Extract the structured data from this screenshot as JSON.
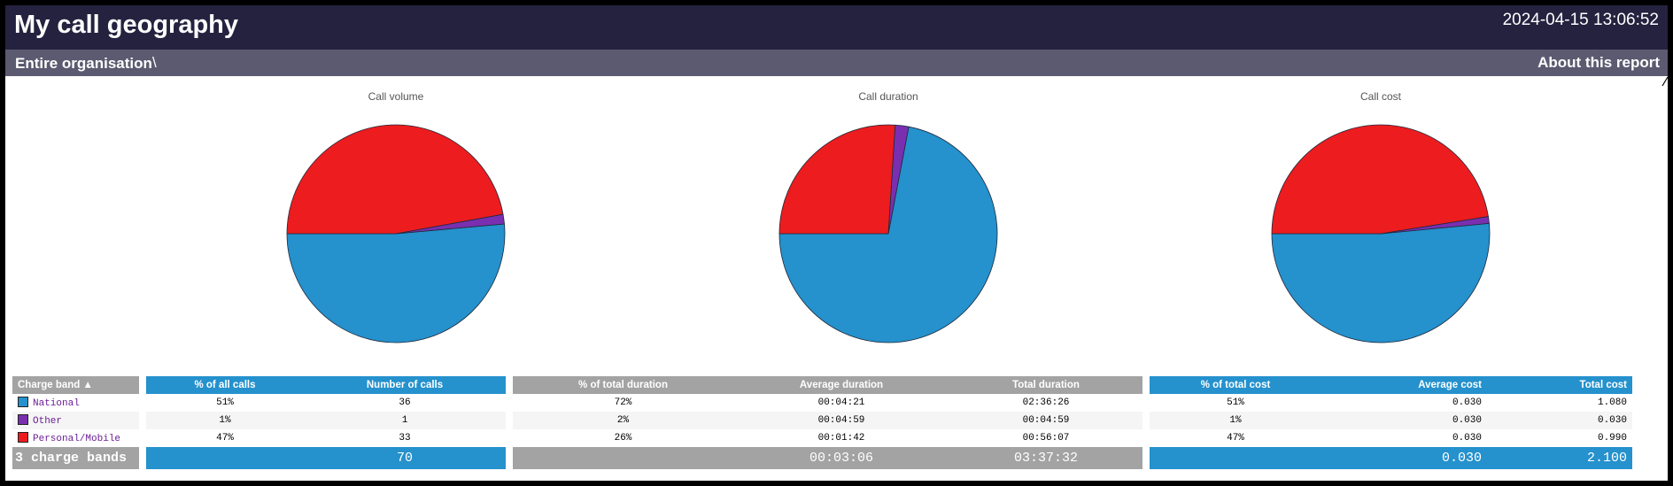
{
  "header": {
    "title": "My call geography",
    "timestamp": "2024-04-15 13:06:52"
  },
  "nav": {
    "breadcrumb": "Entire organisation",
    "separator": "\\",
    "about": "About this report"
  },
  "colors": {
    "header_bg": "#24223f",
    "nav_bg": "#5b5a70",
    "accent_blue": "#2591cd",
    "header_gray": "#a3a3a3",
    "national": "#2591cd",
    "other": "#7a2fb0",
    "personal_mobile": "#ed1c1f"
  },
  "chart_data": [
    {
      "type": "pie",
      "title": "Call volume",
      "categories": [
        "National",
        "Other",
        "Personal/Mobile"
      ],
      "values": [
        36,
        1,
        33
      ]
    },
    {
      "type": "pie",
      "title": "Call duration",
      "categories": [
        "National",
        "Other",
        "Personal/Mobile"
      ],
      "values": [
        72,
        2,
        26
      ]
    },
    {
      "type": "pie",
      "title": "Call cost",
      "categories": [
        "National",
        "Other",
        "Personal/Mobile"
      ],
      "values": [
        51,
        1,
        47
      ]
    }
  ],
  "table": {
    "headers": {
      "band": "Charge band ▲",
      "pct_calls": "% of all calls",
      "num_calls": "Number of calls",
      "pct_duration": "% of total duration",
      "avg_duration": "Average duration",
      "total_duration": "Total duration",
      "pct_cost": "% of total cost",
      "avg_cost": "Average cost",
      "total_cost": "Total cost"
    },
    "rows": [
      {
        "band": "National",
        "color": "#2591cd",
        "pct_calls": "51%",
        "num_calls": "36",
        "pct_duration": "72%",
        "avg_duration": "00:04:21",
        "total_duration": "02:36:26",
        "pct_cost": "51%",
        "avg_cost": "0.030",
        "total_cost": "1.080"
      },
      {
        "band": "Other",
        "color": "#7a2fb0",
        "pct_calls": "1%",
        "num_calls": "1",
        "pct_duration": "2%",
        "avg_duration": "00:04:59",
        "total_duration": "00:04:59",
        "pct_cost": "1%",
        "avg_cost": "0.030",
        "total_cost": "0.030"
      },
      {
        "band": "Personal/Mobile",
        "color": "#ed1c1f",
        "pct_calls": "47%",
        "num_calls": "33",
        "pct_duration": "26%",
        "avg_duration": "00:01:42",
        "total_duration": "00:56:07",
        "pct_cost": "47%",
        "avg_cost": "0.030",
        "total_cost": "0.990"
      }
    ],
    "footer": {
      "label": "3 charge bands",
      "num_calls": "70",
      "avg_duration": "00:03:06",
      "total_duration": "03:37:32",
      "avg_cost": "0.030",
      "total_cost": "2.100"
    }
  }
}
